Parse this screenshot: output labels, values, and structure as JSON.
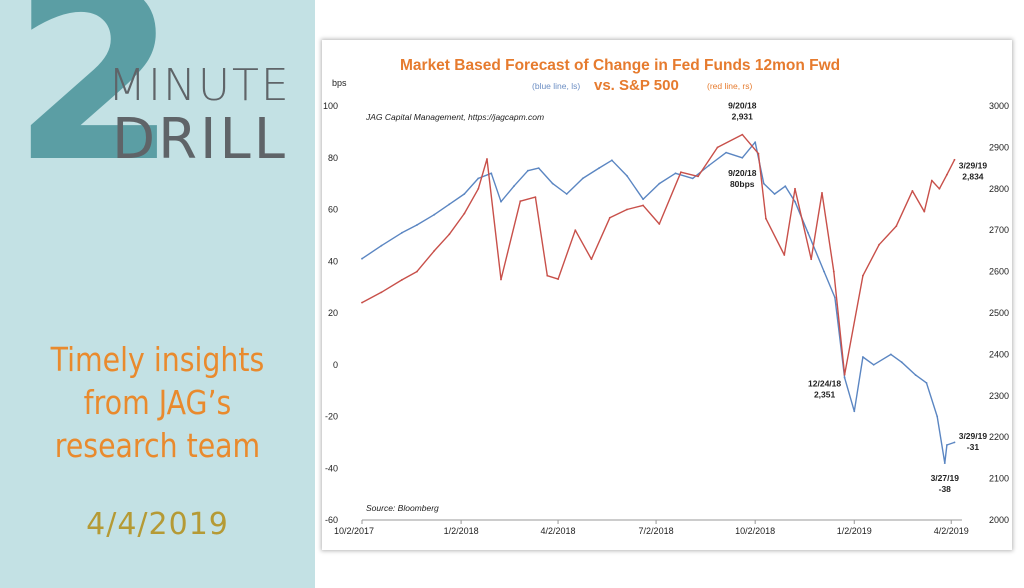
{
  "branding": {
    "number": "2",
    "word1": "MINUTE",
    "word2": "DRILL",
    "tagline": [
      "Timely insights",
      "from JAG’s",
      "research team"
    ],
    "date": "4/4/2019",
    "colors": {
      "panel": "#c3e1e4",
      "number": "#5b9ea4",
      "words": "#5f6468",
      "tagline": "#e98a2d",
      "date": "#b59a35"
    }
  },
  "chart_data": {
    "type": "line",
    "title": "Market Based Forecast of Change in Fed Funds 12mon Fwd",
    "title_note_blue": "(blue line, ls)",
    "title_vs": "vs. S&P 500",
    "title_note_red": "(red line, rs)",
    "source_top": "JAG Capital Management, https://jagcapm.com",
    "source_bottom": "Source: Bloomberg",
    "ylabel_left": "bps",
    "y_left": {
      "min": -60,
      "max": 100,
      "ticks": [
        "100",
        "80",
        "60",
        "40",
        "20",
        "0",
        "-20",
        "-40",
        "-60"
      ]
    },
    "y_right": {
      "min": 2000,
      "max": 3000,
      "ticks": [
        "3000",
        "2900",
        "2800",
        "2700",
        "2600",
        "2500",
        "2400",
        "2300",
        "2200",
        "2100",
        "2000"
      ]
    },
    "x_ticks": [
      "10/2/2017",
      "1/2/2018",
      "4/2/2018",
      "7/2/2018",
      "10/2/2018",
      "1/2/2019",
      "4/2/2019"
    ],
    "x_tick_dates": [
      "2017-10-02",
      "2018-01-02",
      "2018-04-02",
      "2018-07-02",
      "2018-10-02",
      "2019-01-02",
      "2019-04-02"
    ],
    "x_range": [
      "2017-10-02",
      "2019-04-12"
    ],
    "grid": false,
    "series": [
      {
        "axis": "left",
        "color": "#5b86c2",
        "points": [
          [
            "2017-10-02",
            41
          ],
          [
            "2017-10-20",
            46
          ],
          [
            "2017-11-08",
            51
          ],
          [
            "2017-11-22",
            54
          ],
          [
            "2017-12-08",
            58
          ],
          [
            "2017-12-22",
            62
          ],
          [
            "2018-01-05",
            66
          ],
          [
            "2018-01-18",
            72
          ],
          [
            "2018-01-30",
            74
          ],
          [
            "2018-02-08",
            63
          ],
          [
            "2018-02-20",
            69
          ],
          [
            "2018-03-05",
            75
          ],
          [
            "2018-03-15",
            76
          ],
          [
            "2018-03-28",
            70
          ],
          [
            "2018-04-10",
            66
          ],
          [
            "2018-04-25",
            72
          ],
          [
            "2018-05-10",
            76
          ],
          [
            "2018-05-22",
            79
          ],
          [
            "2018-06-05",
            73
          ],
          [
            "2018-06-20",
            64
          ],
          [
            "2018-07-05",
            70
          ],
          [
            "2018-07-20",
            74
          ],
          [
            "2018-08-05",
            72
          ],
          [
            "2018-08-20",
            77
          ],
          [
            "2018-09-05",
            82
          ],
          [
            "2018-09-20",
            80
          ],
          [
            "2018-10-02",
            86
          ],
          [
            "2018-10-10",
            70
          ],
          [
            "2018-10-20",
            66
          ],
          [
            "2018-10-30",
            69
          ],
          [
            "2018-11-08",
            63
          ],
          [
            "2018-11-20",
            51
          ],
          [
            "2018-12-05",
            36
          ],
          [
            "2018-12-15",
            26
          ],
          [
            "2018-12-24",
            -5
          ],
          [
            "2019-01-02",
            -18
          ],
          [
            "2019-01-10",
            3
          ],
          [
            "2019-01-20",
            0
          ],
          [
            "2019-02-05",
            4
          ],
          [
            "2019-02-15",
            1
          ],
          [
            "2019-02-28",
            -4
          ],
          [
            "2019-03-10",
            -7
          ],
          [
            "2019-03-20",
            -20
          ],
          [
            "2019-03-27",
            -38
          ],
          [
            "2019-03-29",
            -31
          ],
          [
            "2019-04-05",
            -30
          ]
        ]
      },
      {
        "axis": "right",
        "color": "#c8504a",
        "points": [
          [
            "2017-10-02",
            2525
          ],
          [
            "2017-10-20",
            2550
          ],
          [
            "2017-11-08",
            2580
          ],
          [
            "2017-11-22",
            2600
          ],
          [
            "2017-12-08",
            2650
          ],
          [
            "2017-12-22",
            2690
          ],
          [
            "2018-01-05",
            2740
          ],
          [
            "2018-01-18",
            2800
          ],
          [
            "2018-01-26",
            2872
          ],
          [
            "2018-02-08",
            2581
          ],
          [
            "2018-02-26",
            2770
          ],
          [
            "2018-03-12",
            2780
          ],
          [
            "2018-03-23",
            2590
          ],
          [
            "2018-04-02",
            2582
          ],
          [
            "2018-04-18",
            2700
          ],
          [
            "2018-05-03",
            2630
          ],
          [
            "2018-05-20",
            2730
          ],
          [
            "2018-06-05",
            2750
          ],
          [
            "2018-06-20",
            2760
          ],
          [
            "2018-07-05",
            2715
          ],
          [
            "2018-07-25",
            2840
          ],
          [
            "2018-08-10",
            2830
          ],
          [
            "2018-08-28",
            2900
          ],
          [
            "2018-09-20",
            2931
          ],
          [
            "2018-10-05",
            2885
          ],
          [
            "2018-10-12",
            2728
          ],
          [
            "2018-10-29",
            2640
          ],
          [
            "2018-11-08",
            2800
          ],
          [
            "2018-11-23",
            2630
          ],
          [
            "2018-12-03",
            2790
          ],
          [
            "2018-12-14",
            2600
          ],
          [
            "2018-12-24",
            2351
          ],
          [
            "2019-01-10",
            2590
          ],
          [
            "2019-01-25",
            2665
          ],
          [
            "2019-02-10",
            2710
          ],
          [
            "2019-02-25",
            2795
          ],
          [
            "2019-03-08",
            2745
          ],
          [
            "2019-03-15",
            2820
          ],
          [
            "2019-03-22",
            2800
          ],
          [
            "2019-03-29",
            2834
          ],
          [
            "2019-04-05",
            2870
          ]
        ]
      }
    ],
    "annotations": [
      {
        "axis": "right",
        "date": "2018-09-20",
        "value": 2931,
        "lines": [
          "9/20/18",
          "2,931"
        ],
        "pos": "above"
      },
      {
        "axis": "left",
        "date": "2018-09-20",
        "value": 80,
        "lines": [
          "9/20/18",
          "80bps"
        ],
        "pos": "below"
      },
      {
        "axis": "right",
        "date": "2018-12-24",
        "value": 2351,
        "lines": [
          "12/24/18",
          "2,351"
        ],
        "pos": "below-left"
      },
      {
        "axis": "right",
        "date": "2019-03-29",
        "value": 2834,
        "lines": [
          "3/29/19",
          "2,834"
        ],
        "pos": "right"
      },
      {
        "axis": "left",
        "date": "2019-03-29",
        "value": -31,
        "lines": [
          "3/29/19",
          "-31"
        ],
        "pos": "right"
      },
      {
        "axis": "left",
        "date": "2019-03-27",
        "value": -38,
        "lines": [
          "3/27/19",
          "-38"
        ],
        "pos": "below"
      }
    ]
  }
}
